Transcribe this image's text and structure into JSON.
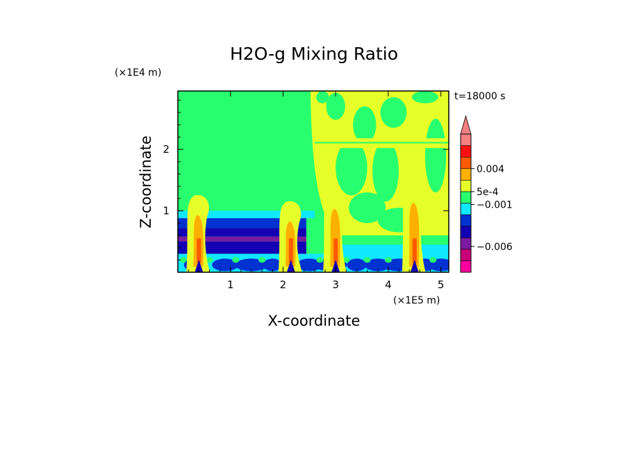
{
  "chart_data": {
    "type": "heatmap",
    "title": "H2O-g Mixing Ratio",
    "xlabel": "X-coordinate",
    "ylabel": "Z-coordinate",
    "x_unit": "(×1E5 m)",
    "y_unit": "(×1E4 m)",
    "time_label": "t=18000 s",
    "xlim": [
      0,
      5.15
    ],
    "ylim": [
      0,
      2.95
    ],
    "x_ticks": [
      1,
      2,
      3,
      4,
      5
    ],
    "y_ticks": [
      1,
      2
    ],
    "colorbar": {
      "colors": [
        "#ff00a0",
        "#c8007a",
        "#7a1aa0",
        "#1400b4",
        "#0032d2",
        "#10e8ff",
        "#28ff6e",
        "#e6ff28",
        "#ffb000",
        "#ff5a00",
        "#ff1010",
        "#f48080"
      ],
      "labels": [
        {
          "text": "0.004",
          "value": 0.004
        },
        {
          "text": "5e-4",
          "value": 0.0005
        },
        {
          "text": "−0.001",
          "value": -0.001
        },
        {
          "text": "−0.006",
          "value": -0.006
        }
      ],
      "extend": "max"
    },
    "features": {
      "background_color": "#28ff6e",
      "left_layers": [
        {
          "z_top": 1.0,
          "color": "#10e8ff"
        },
        {
          "z_top": 0.88,
          "color": "#0032d2"
        },
        {
          "z_top": 0.72,
          "color": "#1400b4"
        },
        {
          "z_top": 0.58,
          "color": "#7a1aa0"
        },
        {
          "z_top": 0.5,
          "color": "#1400b4"
        },
        {
          "z_top": 0.3,
          "color": "#10e8ff"
        }
      ],
      "plumes": [
        {
          "x": 0.4,
          "z_top": 1.25
        },
        {
          "x": 2.15,
          "z_top": 1.15
        },
        {
          "x": 3.0,
          "z_top": 1.35
        },
        {
          "x": 4.5,
          "z_top": 1.45
        }
      ],
      "upper_region_x_start": 2.6
    }
  }
}
